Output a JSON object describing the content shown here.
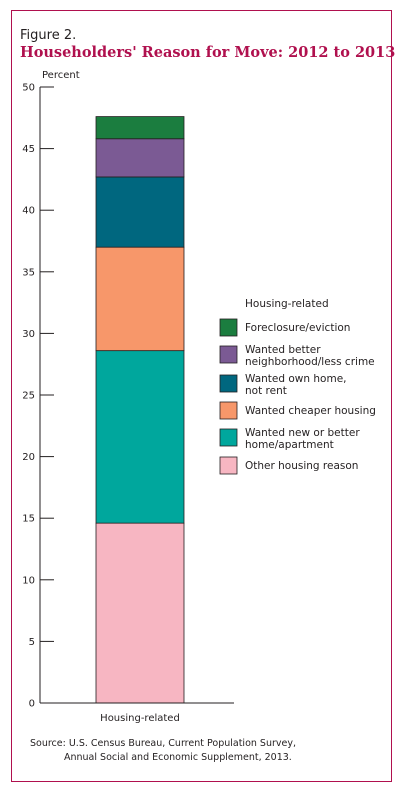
{
  "figure_label": "Figure 2.",
  "figure_title": "Householders' Reason for Move: 2012 to 2013",
  "source": {
    "line1": "Source: U.S. Census Bureau, Current Population Survey,",
    "line2": "Annual Social and Economic Supplement, 2013."
  },
  "colors": {
    "frame": "#b0104e",
    "title": "#b0104e"
  },
  "chart_data": {
    "type": "bar",
    "stacked": true,
    "categories": [
      "Housing-related"
    ],
    "ylabel": "Percent",
    "ylim": [
      0,
      50
    ],
    "yticks": [
      0,
      5,
      10,
      15,
      20,
      25,
      30,
      35,
      40,
      45,
      50
    ],
    "grid": false,
    "legend_title": "Housing-related",
    "legend_position": "right",
    "series": [
      {
        "name": "Other housing reason",
        "values": [
          14.6
        ],
        "color": "#f7b6c2"
      },
      {
        "name": "Wanted new or better home/apartment",
        "label_lines": [
          "Wanted new or better",
          "home/apartment"
        ],
        "values": [
          14.0
        ],
        "color": "#00a79d"
      },
      {
        "name": "Wanted cheaper housing",
        "values": [
          8.4
        ],
        "color": "#f7976a"
      },
      {
        "name": "Wanted own home, not rent",
        "label_lines": [
          "Wanted own home,",
          "not rent"
        ],
        "values": [
          5.7
        ],
        "color": "#00677f"
      },
      {
        "name": "Wanted better neighborhood/less crime",
        "label_lines": [
          "Wanted better",
          "neighborhood/less crime"
        ],
        "values": [
          3.1
        ],
        "color": "#7b5a94"
      },
      {
        "name": "Foreclosure/eviction",
        "values": [
          1.8
        ],
        "color": "#1b7d3f"
      }
    ]
  }
}
